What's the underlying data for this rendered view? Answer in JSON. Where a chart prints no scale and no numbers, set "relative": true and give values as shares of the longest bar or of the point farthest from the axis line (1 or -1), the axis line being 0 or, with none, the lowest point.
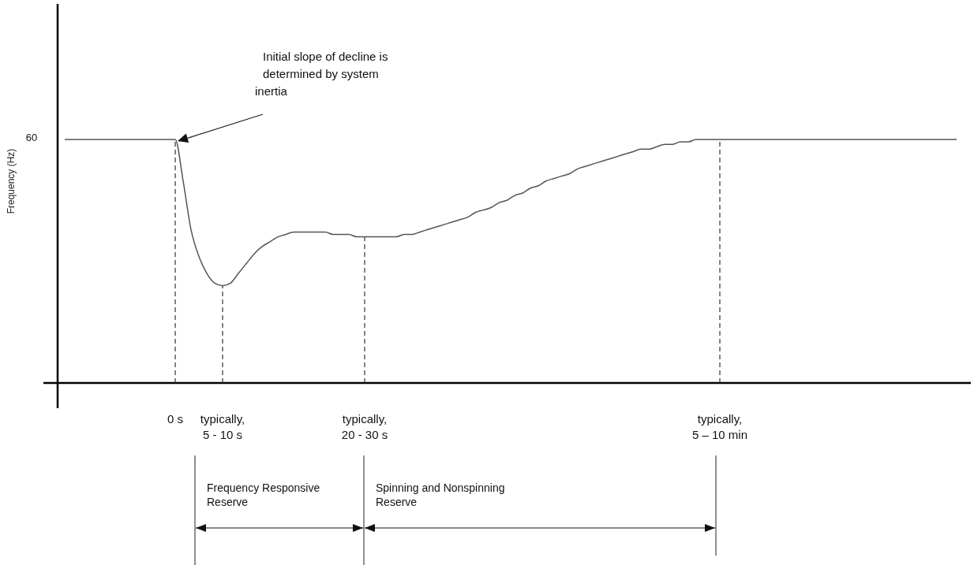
{
  "chart_data": {
    "type": "line",
    "relative": true,
    "ylabel": "Frequency (Hz)",
    "color": "#555555",
    "categories": [
      null,
      null,
      null,
      null,
      null,
      null,
      null,
      null,
      null,
      null,
      null,
      null,
      null,
      null,
      "0 s",
      null,
      null,
      null,
      null,
      null,
      "typically, 5 - 10 s",
      null,
      null,
      null,
      null,
      null,
      null,
      null,
      null,
      null,
      null,
      null,
      null,
      null,
      null,
      null,
      null,
      null,
      "typically, 20 - 30 s",
      null,
      null,
      null,
      null,
      null,
      null,
      null,
      null,
      null,
      null,
      null,
      null,
      null,
      null,
      null,
      null,
      null,
      null,
      null,
      null,
      null,
      null,
      null,
      null,
      null,
      null,
      null,
      null,
      null,
      null,
      null,
      null,
      null,
      null,
      null,
      null,
      null,
      null,
      null,
      null,
      null,
      null,
      null,
      null,
      "typically, 5 – 10 min",
      null,
      null,
      null,
      null,
      null,
      null,
      null,
      null,
      null,
      null,
      null,
      null,
      null,
      null,
      null,
      null,
      null,
      null,
      null,
      null,
      null,
      null,
      null,
      null,
      null,
      null,
      null,
      null,
      null,
      null
    ],
    "values": [
      1,
      1,
      1,
      1,
      1,
      1,
      1,
      1,
      1,
      1,
      1,
      1,
      1,
      1,
      1,
      0.83,
      0.63,
      0.52,
      0.45,
      0.41,
      0.4,
      0.41,
      0.45,
      0.49,
      0.53,
      0.56,
      0.58,
      0.6,
      0.61,
      0.62,
      0.62,
      0.62,
      0.62,
      0.62,
      0.61,
      0.61,
      0.61,
      0.6,
      0.6,
      0.6,
      0.6,
      0.6,
      0.6,
      0.61,
      0.61,
      0.62,
      0.63,
      0.64,
      0.65,
      0.66,
      0.67,
      0.68,
      0.7,
      0.71,
      0.72,
      0.74,
      0.75,
      0.77,
      0.78,
      0.8,
      0.81,
      0.83,
      0.84,
      0.85,
      0.86,
      0.88,
      0.89,
      0.9,
      0.91,
      0.92,
      0.93,
      0.94,
      0.95,
      0.96,
      0.96,
      0.97,
      0.98,
      0.98,
      0.99,
      0.99,
      1,
      1,
      1,
      1,
      1,
      1,
      1,
      1,
      1,
      1,
      1,
      1,
      1,
      1,
      1,
      1,
      1,
      1,
      1,
      1,
      1,
      1,
      1,
      1,
      1,
      1,
      1,
      1,
      1,
      1,
      1,
      1,
      1,
      1
    ],
    "ref_lines": [
      {
        "axis": "x",
        "value": "0 s",
        "line_style": "dashed"
      },
      {
        "axis": "x",
        "value": "typically, 5 - 10 s",
        "line_style": "dashed"
      },
      {
        "axis": "x",
        "value": "typically, 20 - 30 s",
        "line_style": "dashed"
      },
      {
        "axis": "x",
        "value": "typically, 5 – 10 min",
        "line_style": "dashed"
      }
    ],
    "annotations": [
      "Initial slope of decline is determined by system inertia",
      "60",
      "Frequency Responsive Reserve",
      "Spinning and Nonspinning Reserve"
    ]
  }
}
